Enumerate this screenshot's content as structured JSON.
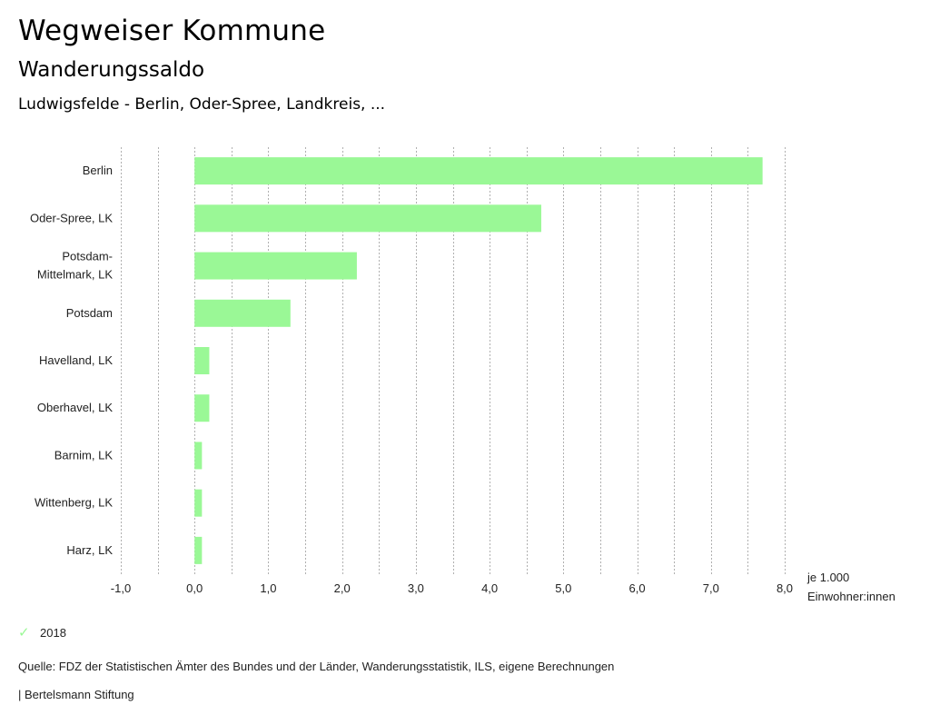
{
  "header": {
    "title": "Wegweiser Kommune",
    "subtitle": "Wanderungssaldo",
    "region": "Ludwigsfelde - Berlin, Oder-Spree, Landkreis, ..."
  },
  "chart_data": {
    "type": "bar",
    "orientation": "horizontal",
    "categories": [
      [
        "Berlin"
      ],
      [
        "Oder-Spree, LK"
      ],
      [
        "Potsdam-",
        "Mittelmark, LK"
      ],
      [
        "Potsdam"
      ],
      [
        "Havelland, LK"
      ],
      [
        "Oberhavel, LK"
      ],
      [
        "Barnim, LK"
      ],
      [
        "Wittenberg, LK"
      ],
      [
        "Harz, LK"
      ]
    ],
    "series": [
      {
        "name": "2018",
        "color": "#9af896",
        "values": [
          7.7,
          4.7,
          2.2,
          1.3,
          0.2,
          0.2,
          0.1,
          0.1,
          0.1
        ]
      }
    ],
    "xlim": [
      -1.0,
      8.0
    ],
    "xticks": [
      -1.0,
      0.0,
      1.0,
      2.0,
      3.0,
      4.0,
      5.0,
      6.0,
      7.0,
      8.0
    ],
    "xtick_labels": [
      "-1,0",
      "0,0",
      "1,0",
      "2,0",
      "3,0",
      "4,0",
      "5,0",
      "6,0",
      "7,0",
      "8,0"
    ],
    "grid_step": 0.5,
    "grid": true,
    "xlabel": [
      "je 1.000",
      "Einwohner:innen"
    ],
    "legend_position": "bottom-left"
  },
  "legend": {
    "label": "2018",
    "icon": "check-icon"
  },
  "footer": {
    "source": "Quelle: FDZ der Statistischen Ämter des Bundes und der Länder, Wanderungsstatistik, ILS, eigene Berechnungen",
    "brand": "| Bertelsmann Stiftung"
  }
}
